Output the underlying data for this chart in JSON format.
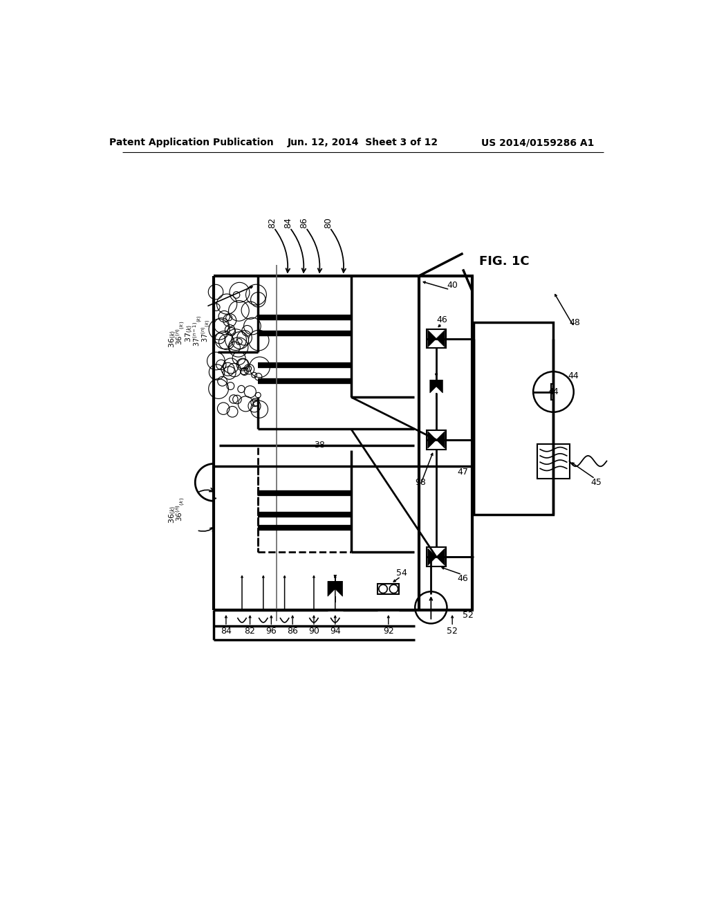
{
  "title_left": "Patent Application Publication",
  "title_center": "Jun. 12, 2014  Sheet 3 of 12",
  "title_right": "US 2014/0159286 A1",
  "fig_label": "FIG. 1C",
  "background_color": "#ffffff"
}
